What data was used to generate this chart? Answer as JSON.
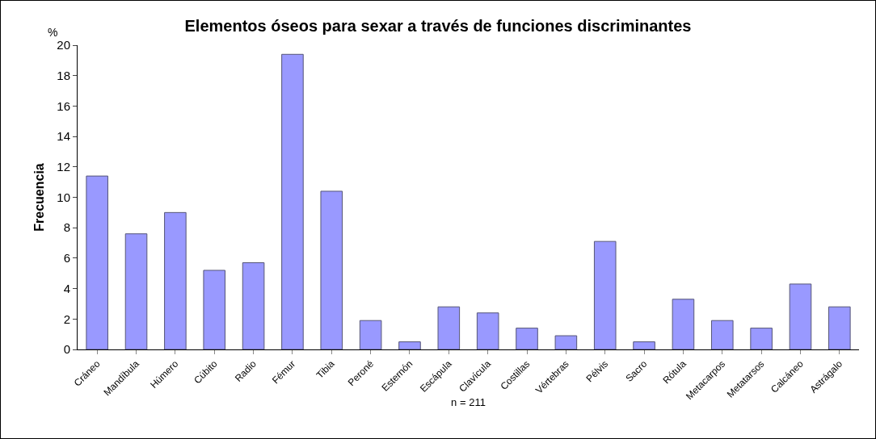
{
  "chart_data": {
    "type": "bar",
    "title": "Elementos óseos para sexar a través de funciones discriminantes",
    "ylabel": "Frecuencia",
    "xlabel": "n = 211",
    "annotations": [
      "%"
    ],
    "categories": [
      "Cráneo",
      "Mandíbula",
      "Húmero",
      "Cúbito",
      "Radio",
      "Fémur",
      "Tibia",
      "Peroné",
      "Esternón",
      "Escápula",
      "Clavícula",
      "Costillas",
      "Vértebras",
      "Pélvis",
      "Sacro",
      "Rótula",
      "Metacarpos",
      "Metatarsos",
      "Calcáneo",
      "Astrágalo"
    ],
    "values": [
      11.4,
      7.6,
      9.0,
      5.2,
      5.7,
      19.4,
      10.4,
      1.9,
      0.5,
      2.8,
      2.4,
      1.4,
      0.9,
      7.1,
      0.5,
      3.3,
      1.9,
      1.4,
      4.3,
      2.8
    ],
    "color": "#9999ff",
    "ylim": [
      0,
      20
    ],
    "yticks": [
      0,
      2,
      4,
      6,
      8,
      10,
      12,
      14,
      16,
      18,
      20
    ],
    "grid": false
  }
}
